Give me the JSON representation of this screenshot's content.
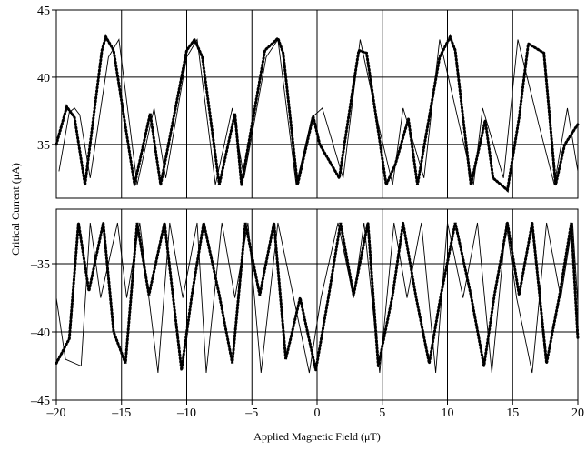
{
  "chart_data": {
    "type": "line",
    "xlabel": "Applied Magnetic Field (μT)",
    "ylabel": "Critical Current (μA)",
    "xlim": [
      -20,
      20
    ],
    "x_ticks": [
      "–20",
      "–15",
      "–10",
      "–5",
      "0",
      "5",
      "10",
      "15",
      "20"
    ],
    "x_tick_values": [
      -20,
      -15,
      -10,
      -5,
      0,
      5,
      10,
      15,
      20
    ],
    "grid": true,
    "panels": [
      {
        "name": "positive",
        "ylim": [
          31,
          45
        ],
        "y_ticks": [
          "35",
          "40",
          "45"
        ],
        "y_tick_values": [
          35,
          40,
          45
        ],
        "series": [
          {
            "style": "solid-thin",
            "x": [
              -19.8,
              -19.0,
              -18.6,
              -18.2,
              -17.4,
              -16.0,
              -15.2,
              -13.8,
              -12.5,
              -11.6,
              -10.0,
              -9.2,
              -7.8,
              -6.5,
              -5.6,
              -3.9,
              -3.0,
              -1.6,
              -0.4,
              0.4,
              2.0,
              3.3,
              4.7,
              5.8,
              6.6,
              8.2,
              9.4,
              10.9,
              12.0,
              12.7,
              14.3,
              15.4,
              17.0,
              18.2,
              19.2,
              20.0
            ],
            "y": [
              33.0,
              37.4,
              37.7,
              37.2,
              32.5,
              41.5,
              42.8,
              32.0,
              37.7,
              32.5,
              41.5,
              42.8,
              32.0,
              37.7,
              32.5,
              41.5,
              42.8,
              32.0,
              37.0,
              37.7,
              32.5,
              42.8,
              36.5,
              32.0,
              37.7,
              32.5,
              42.8,
              36.5,
              32.0,
              37.7,
              32.5,
              42.8,
              36.5,
              32.0,
              37.7,
              33.0
            ]
          },
          {
            "style": "dotted-thick",
            "x": [
              -20.0,
              -19.2,
              -18.6,
              -17.8,
              -16.5,
              -16.2,
              -15.6,
              -14.0,
              -12.8,
              -12.0,
              -10.0,
              -9.4,
              -8.8,
              -7.5,
              -6.3,
              -5.8,
              -4.0,
              -3.0,
              -2.6,
              -1.5,
              -0.3,
              0.2,
              1.7,
              3.2,
              3.8,
              5.3,
              6.0,
              7.0,
              7.7,
              9.4,
              10.2,
              10.6,
              11.8,
              12.9,
              13.5,
              14.6,
              15.5,
              16.2,
              17.4,
              18.3,
              19.0,
              20.0
            ],
            "y": [
              35.0,
              37.8,
              37.0,
              32.0,
              42.0,
              43.0,
              42.0,
              32.0,
              37.3,
              32.0,
              42.0,
              42.8,
              41.5,
              32.0,
              37.3,
              32.0,
              42.0,
              42.9,
              41.8,
              32.0,
              37.1,
              35.0,
              32.5,
              42.0,
              41.8,
              32.0,
              33.5,
              36.9,
              32.0,
              41.5,
              43.0,
              42.0,
              32.0,
              36.8,
              32.5,
              31.6,
              37.0,
              42.5,
              41.8,
              32.0,
              35.0,
              36.5
            ]
          }
        ]
      },
      {
        "name": "negative",
        "ylim": [
          -45,
          -31
        ],
        "y_ticks": [
          "–35",
          "–40",
          "–45"
        ],
        "y_tick_values": [
          -35,
          -40,
          -45
        ],
        "series": [
          {
            "style": "solid-thin",
            "x": [
              -20.0,
              -19.3,
              -18.1,
              -17.4,
              -16.6,
              -15.3,
              -14.6,
              -13.6,
              -12.2,
              -11.3,
              -10.3,
              -9.2,
              -8.5,
              -7.3,
              -6.3,
              -5.3,
              -4.3,
              -3.0,
              -1.8,
              -0.6,
              0.3,
              1.6,
              2.8,
              3.6,
              4.8,
              5.9,
              6.9,
              8.0,
              9.1,
              10.0,
              11.2,
              12.3,
              13.4,
              14.5,
              15.3,
              16.5,
              17.6,
              18.7,
              19.6,
              20.0
            ],
            "y": [
              -37.5,
              -42.0,
              -42.5,
              -32.0,
              -37.5,
              -32.0,
              -37.5,
              -32.0,
              -43.0,
              -32.0,
              -37.5,
              -32.0,
              -43.0,
              -32.0,
              -37.5,
              -32.0,
              -43.0,
              -32.0,
              -37.5,
              -43.0,
              -37.5,
              -32.0,
              -37.5,
              -32.0,
              -43.0,
              -32.0,
              -37.5,
              -32.0,
              -43.0,
              -32.0,
              -37.5,
              -32.0,
              -43.0,
              -32.0,
              -37.5,
              -43.0,
              -32.0,
              -37.5,
              -32.0,
              -38.0
            ]
          },
          {
            "style": "dotted-thick",
            "x": [
              -20.0,
              -19.0,
              -18.3,
              -17.5,
              -16.4,
              -15.6,
              -14.7,
              -13.8,
              -12.9,
              -11.7,
              -10.4,
              -9.6,
              -8.7,
              -7.5,
              -6.5,
              -5.5,
              -4.4,
              -3.3,
              -2.4,
              -1.3,
              -0.1,
              0.9,
              1.8,
              2.8,
              3.9,
              4.7,
              5.8,
              6.6,
              7.6,
              8.6,
              9.5,
              10.6,
              11.8,
              12.8,
              13.6,
              14.6,
              15.5,
              16.5,
              17.6,
              18.6,
              19.5,
              20.0
            ],
            "y": [
              -42.3,
              -40.5,
              -32.0,
              -37.0,
              -32.0,
              -40.0,
              -42.3,
              -32.0,
              -37.3,
              -32.0,
              -42.8,
              -37.3,
              -32.0,
              -37.3,
              -42.3,
              -32.0,
              -37.3,
              -32.0,
              -42.0,
              -37.5,
              -42.8,
              -37.3,
              -32.0,
              -37.3,
              -32.0,
              -42.5,
              -37.3,
              -32.0,
              -37.5,
              -42.3,
              -37.3,
              -32.0,
              -37.3,
              -42.5,
              -37.3,
              -32.0,
              -37.3,
              -32.0,
              -42.3,
              -37.3,
              -32.0,
              -40.5
            ]
          }
        ]
      }
    ]
  }
}
